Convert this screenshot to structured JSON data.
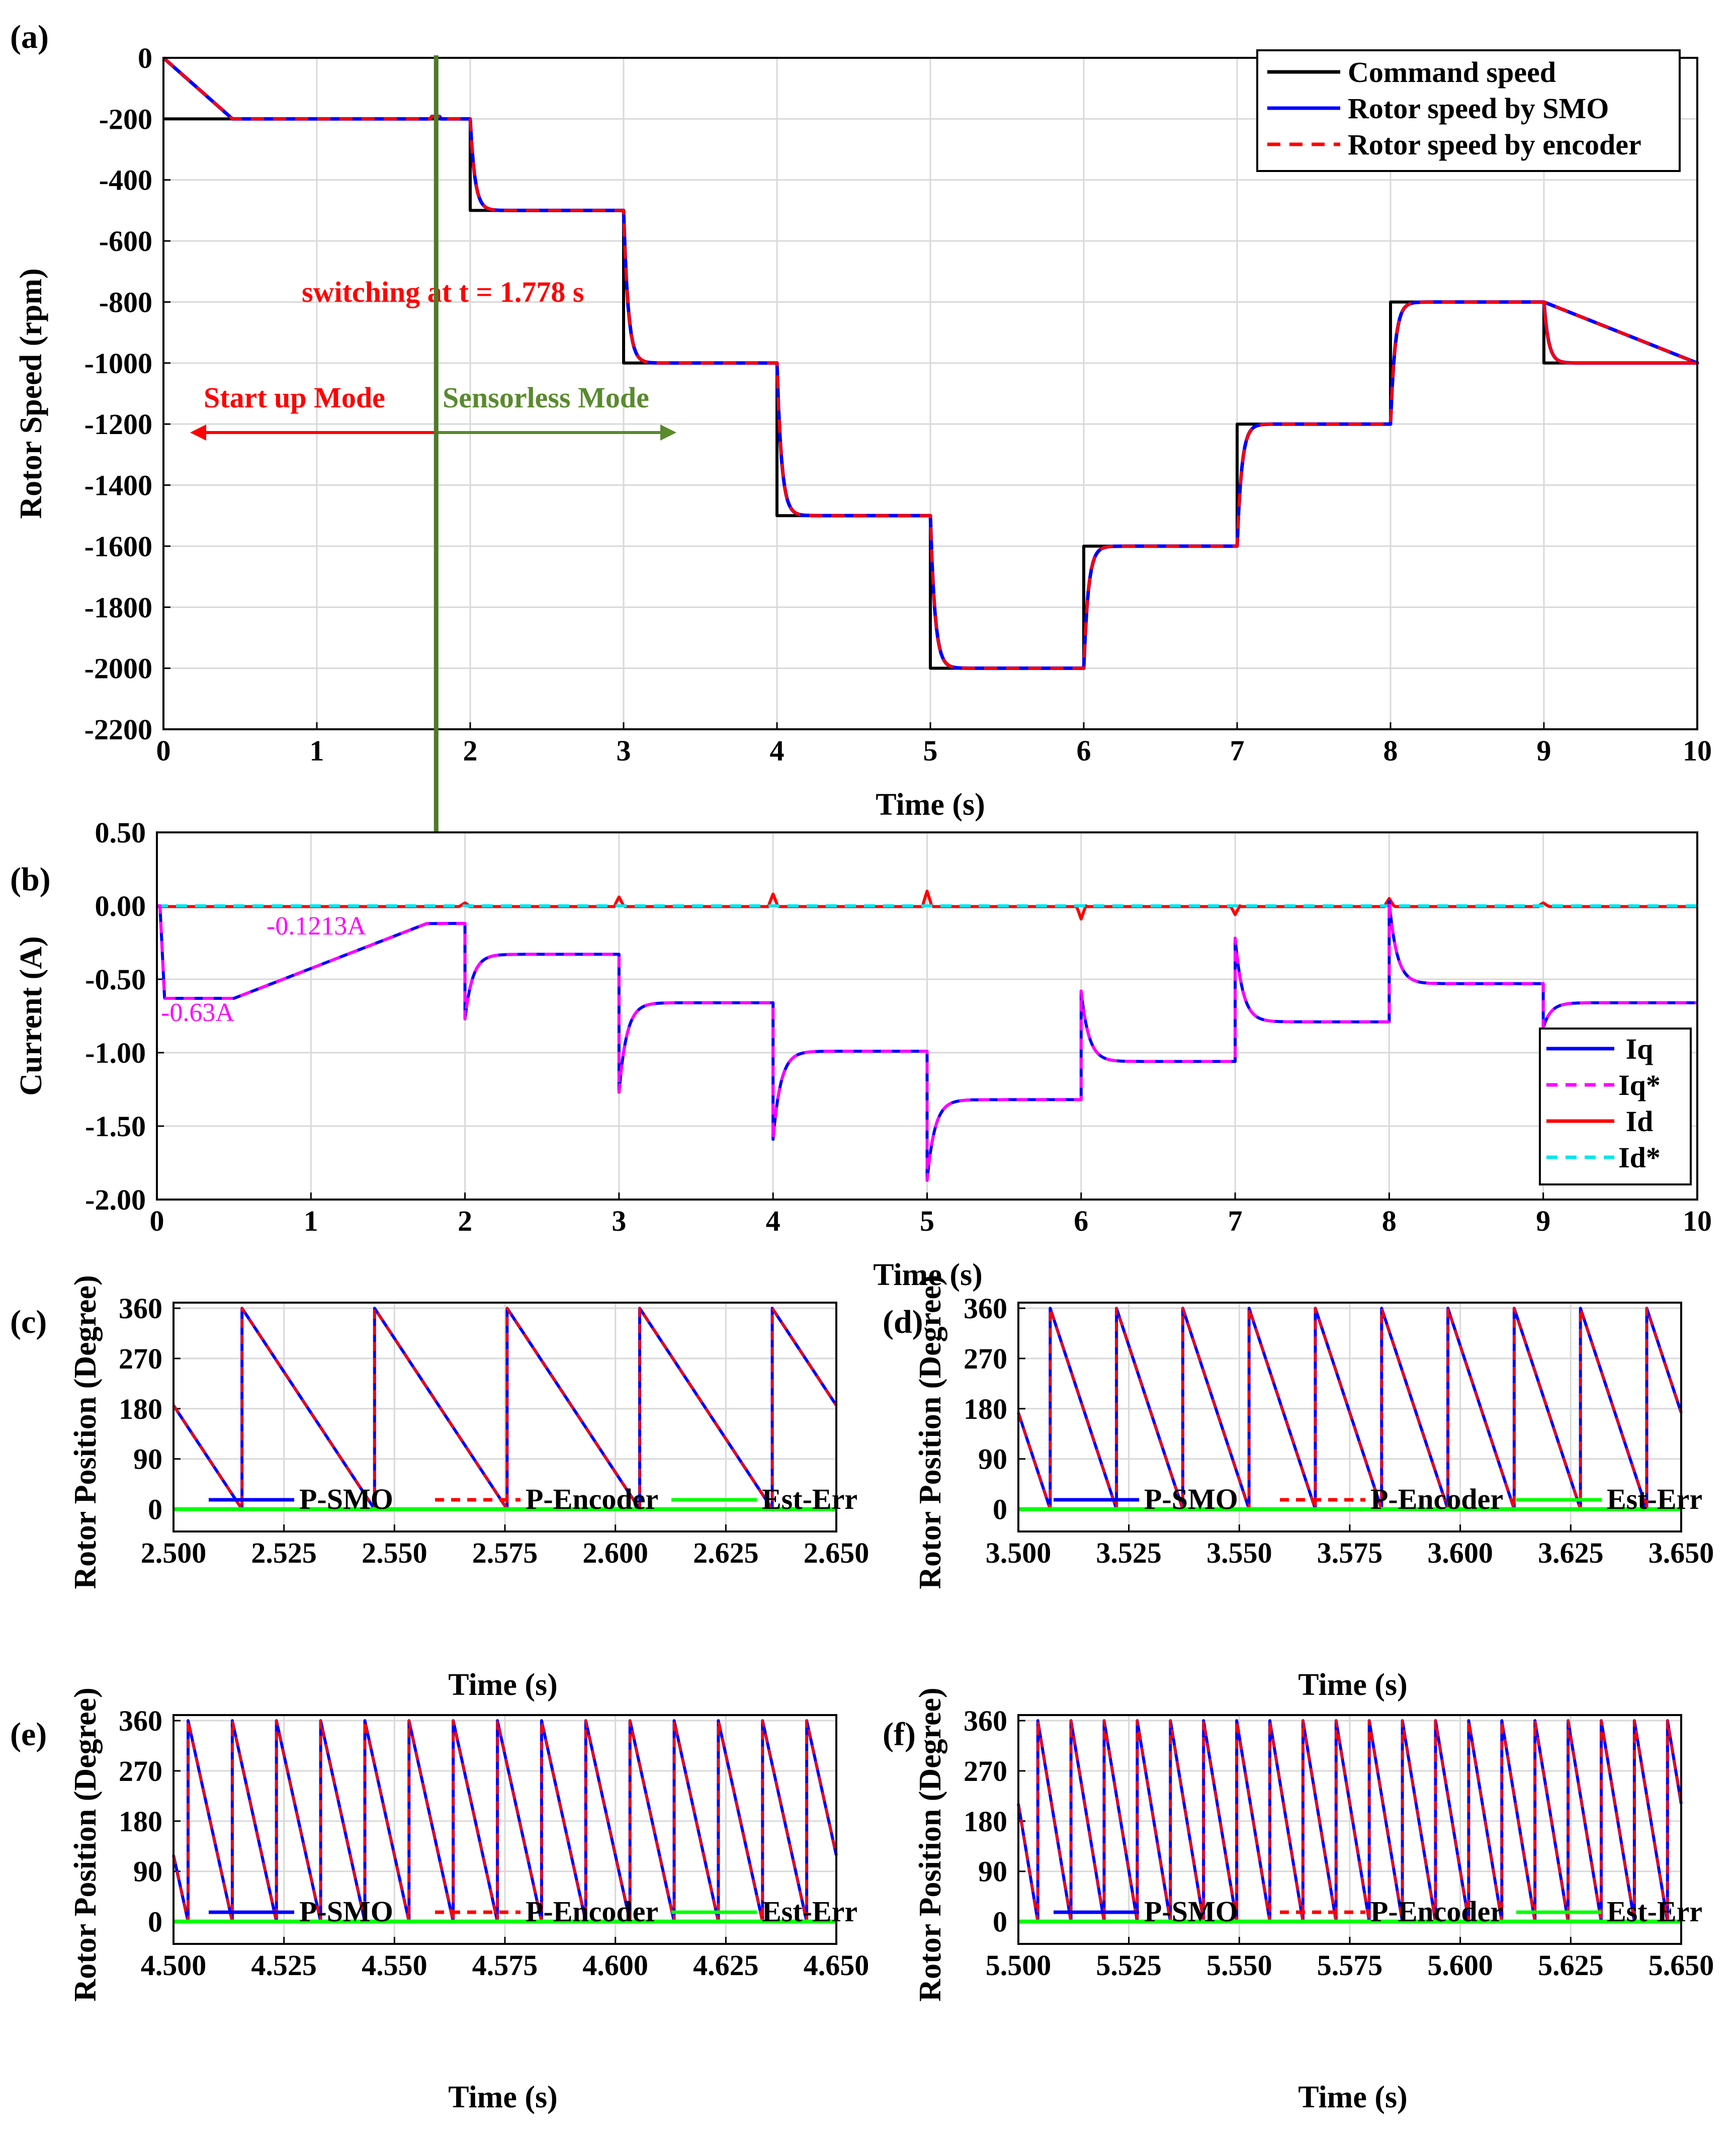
{
  "colors": {
    "command": "#000000",
    "smo": "#0000ff",
    "encoder": "#ff0000",
    "iq": "#0000ff",
    "iq_ref": "#ff00ff",
    "id": "#ff0000",
    "id_ref": "#00e5ee",
    "est_err": "#00ff00",
    "switch_line": "#4f7a28",
    "startup_text": "#ff0000",
    "sensorless_text": "#5a8a2e",
    "iq_ann": "#ff00ff"
  },
  "chart_data": [
    {
      "panel": "(a)",
      "type": "line",
      "xlabel": "Time (s)",
      "ylabel": "Rotor Speed (rpm)",
      "xlim": [
        0,
        10
      ],
      "ylim": [
        -2200,
        0
      ],
      "xticks": [
        "0",
        "1",
        "2",
        "3",
        "4",
        "5",
        "6",
        "7",
        "8",
        "9",
        "10"
      ],
      "yticks": [
        "0",
        "-200",
        "-400",
        "-600",
        "-800",
        "-1000",
        "-1200",
        "-1400",
        "-1600",
        "-1800",
        "-2000",
        "-2200"
      ],
      "legend": [
        "Command speed",
        "Rotor speed by SMO",
        "Rotor speed by encoder"
      ],
      "legend_position": "top-right",
      "command_steps": [
        {
          "t": 0,
          "v": -200
        },
        {
          "t": 2,
          "v": -500
        },
        {
          "t": 3,
          "v": -1000
        },
        {
          "t": 4,
          "v": -1500
        },
        {
          "t": 5,
          "v": -2000
        },
        {
          "t": 6,
          "v": -1600
        },
        {
          "t": 7,
          "v": -1200
        },
        {
          "t": 8,
          "v": -800
        },
        {
          "t": 9,
          "v": -1000
        },
        {
          "t": 10,
          "v": -1000
        }
      ],
      "startup_ramp": {
        "t_start": 0,
        "v_start": 0,
        "t_end": 0.45,
        "v_end": -200
      },
      "switch_time": 1.778,
      "annotations": {
        "switching": "switching at t = 1.778 s",
        "startup": "Start up Mode",
        "sensorless": "Sensorless Mode"
      }
    },
    {
      "panel": "(b)",
      "type": "line",
      "xlabel": "Time (s)",
      "ylabel": "Current (A)",
      "xlim": [
        0,
        10
      ],
      "ylim": [
        -2.0,
        0.5
      ],
      "xticks": [
        "0",
        "1",
        "2",
        "3",
        "4",
        "5",
        "6",
        "7",
        "8",
        "9",
        "10"
      ],
      "yticks": [
        "0.50",
        "0.00",
        "-0.50",
        "-1.00",
        "-1.50",
        "-2.00"
      ],
      "legend": [
        "Iq",
        "Iq*",
        "Id",
        "Id*"
      ],
      "legend_position": "bottom-right",
      "iq_levels": [
        {
          "t": 2,
          "v": -0.33
        },
        {
          "t": 3,
          "v": -0.66
        },
        {
          "t": 4,
          "v": -0.99
        },
        {
          "t": 5,
          "v": -1.32
        },
        {
          "t": 6,
          "v": -1.06
        },
        {
          "t": 7,
          "v": -0.79
        },
        {
          "t": 8,
          "v": -0.53
        },
        {
          "t": 9,
          "v": -0.66
        }
      ],
      "iq_spikes": [
        {
          "t": 2,
          "v": -0.77
        },
        {
          "t": 3,
          "v": -1.27
        },
        {
          "t": 4,
          "v": -1.59
        },
        {
          "t": 5,
          "v": -1.87
        },
        {
          "t": 6,
          "v": -0.58
        },
        {
          "t": 7,
          "v": -0.22
        },
        {
          "t": 8,
          "v": 0.03
        },
        {
          "t": 9,
          "v": -0.83
        }
      ],
      "startup_current": {
        "t0": 0.05,
        "v0": -0.63,
        "t1": 0.5,
        "v1": -0.63,
        "t2": 1.75,
        "v2": -0.1213
      },
      "annotations": {
        "a1": "-0.1213A",
        "a2": "-0.63A"
      }
    },
    {
      "panel": "(c)",
      "type": "line",
      "xlabel": "Time (s)",
      "ylabel": "Rotor Position (Degree)",
      "xlim": [
        2.5,
        2.65
      ],
      "ylim": [
        -40,
        370
      ],
      "xticks": [
        "2.500",
        "2.525",
        "2.550",
        "2.575",
        "2.600",
        "2.625",
        "2.650"
      ],
      "yticks": [
        "360",
        "270",
        "180",
        "90",
        "0"
      ],
      "legend": [
        "P-SMO",
        "P-Encoder",
        "Est-Err"
      ],
      "period": 0.03,
      "first_wrap": 2.5155
    },
    {
      "panel": "(d)",
      "type": "line",
      "xlabel": "Time (s)",
      "ylabel": "Rotor Position (Degree)",
      "xlim": [
        3.5,
        3.65
      ],
      "ylim": [
        -40,
        370
      ],
      "xticks": [
        "3.500",
        "3.525",
        "3.550",
        "3.575",
        "3.600",
        "3.625",
        "3.650"
      ],
      "yticks": [
        "360",
        "270",
        "180",
        "90",
        "0"
      ],
      "legend": [
        "P-SMO",
        "P-Encoder",
        "Est-Err"
      ],
      "period": 0.015,
      "first_wrap": 3.5072
    },
    {
      "panel": "(e)",
      "type": "line",
      "xlabel": "Time (s)",
      "ylabel": "Rotor Position (Degree)",
      "xlim": [
        4.5,
        4.65
      ],
      "ylim": [
        -40,
        370
      ],
      "xticks": [
        "4.500",
        "4.525",
        "4.550",
        "4.575",
        "4.600",
        "4.625",
        "4.650"
      ],
      "yticks": [
        "360",
        "270",
        "180",
        "90",
        "0"
      ],
      "legend": [
        "P-SMO",
        "P-Encoder",
        "Est-Err"
      ],
      "period": 0.01,
      "first_wrap": 4.5033
    },
    {
      "panel": "(f)",
      "type": "line",
      "xlabel": "Time (s)",
      "ylabel": "Rotor Position (Degree)",
      "xlim": [
        5.5,
        5.65
      ],
      "ylim": [
        -40,
        370
      ],
      "xticks": [
        "5.500",
        "5.525",
        "5.550",
        "5.575",
        "5.600",
        "5.625",
        "5.650"
      ],
      "yticks": [
        "360",
        "270",
        "180",
        "90",
        "0"
      ],
      "legend": [
        "P-SMO",
        "P-Encoder",
        "Est-Err"
      ],
      "period": 0.0075,
      "first_wrap": 5.5044
    }
  ]
}
